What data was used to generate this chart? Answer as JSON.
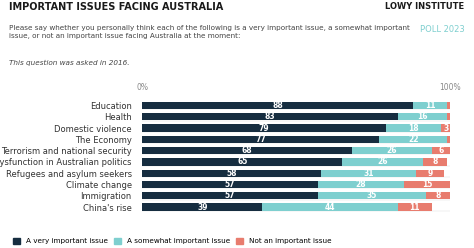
{
  "title": "IMPORTANT ISSUES FACING AUSTRALIA",
  "subtitle": "Please say whether you personally think each of the following is a very important issue, a somewhat important\nissue, or not an important issue facing Australia at the moment:",
  "note": "This question was asked in 2016.",
  "logo_line1": "LOWY INSTITUTE",
  "logo_line2": "POLL 2023",
  "categories": [
    "Education",
    "Health",
    "Domestic violence",
    "The Economy",
    "Terrorism and national security",
    "Dysfunction in Australian politics",
    "Refugees and asylum seekers",
    "Climate change",
    "Immigration",
    "China's rise"
  ],
  "very_important": [
    88,
    83,
    79,
    77,
    68,
    65,
    58,
    57,
    57,
    39
  ],
  "somewhat_important": [
    11,
    16,
    18,
    22,
    26,
    26,
    31,
    28,
    35,
    44
  ],
  "not_important": [
    1,
    1,
    3,
    1,
    6,
    8,
    9,
    15,
    8,
    11
  ],
  "color_very": "#162d40",
  "color_somewhat": "#7ecfcf",
  "color_not": "#e87c6e",
  "legend_labels": [
    "A very important issue",
    "A somewhat important issue",
    "Not an important issue"
  ],
  "background_color": "#ffffff",
  "bar_label_fontsize": 5.5,
  "category_fontsize": 6.0,
  "show_not_threshold": 3
}
